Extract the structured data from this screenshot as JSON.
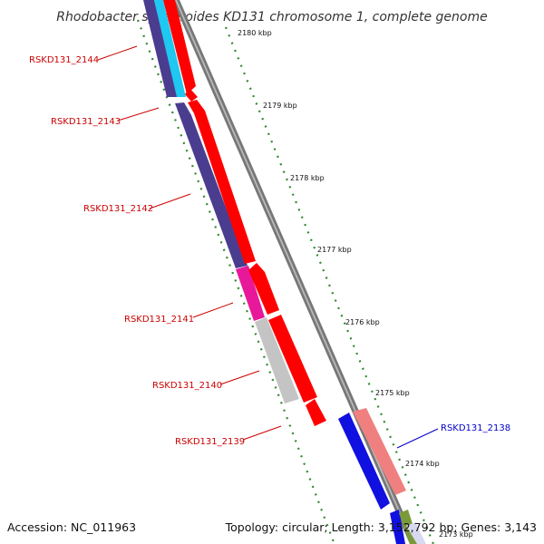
{
  "title": "Rhodobacter sphaeroides KD131 chromosome 1, complete genome",
  "footer": {
    "accession": "Accession: NC_011963",
    "topology": "Topology: circular; Length: 3,152,792 bp; Genes: 3,143"
  },
  "colors": {
    "backbone": "#777777",
    "tick": "#2d8a2d",
    "forward_gene": "#ff0000",
    "label_red": "#cc0000",
    "label_blue": "#0000cc",
    "indigo": "#4a3d8f",
    "cyan": "#1ec8f0",
    "magenta": "#e8189a",
    "gray": "#c4c4c4",
    "blue": "#1010e0",
    "salmon": "#f08080",
    "olive": "#7a9a3a"
  },
  "kbp_labels": [
    "2180 kbp",
    "2179 kbp",
    "2178 kbp",
    "2177 kbp",
    "2176 kbp",
    "2175 kbp",
    "2174 kbp",
    "2173 kbp"
  ],
  "gene_labels": [
    "RSKD131_2144",
    "RSKD131_2143",
    "RSKD131_2142",
    "RSKD131_2141",
    "RSKD131_2140",
    "RSKD131_2139",
    "RSKD131_2138"
  ]
}
